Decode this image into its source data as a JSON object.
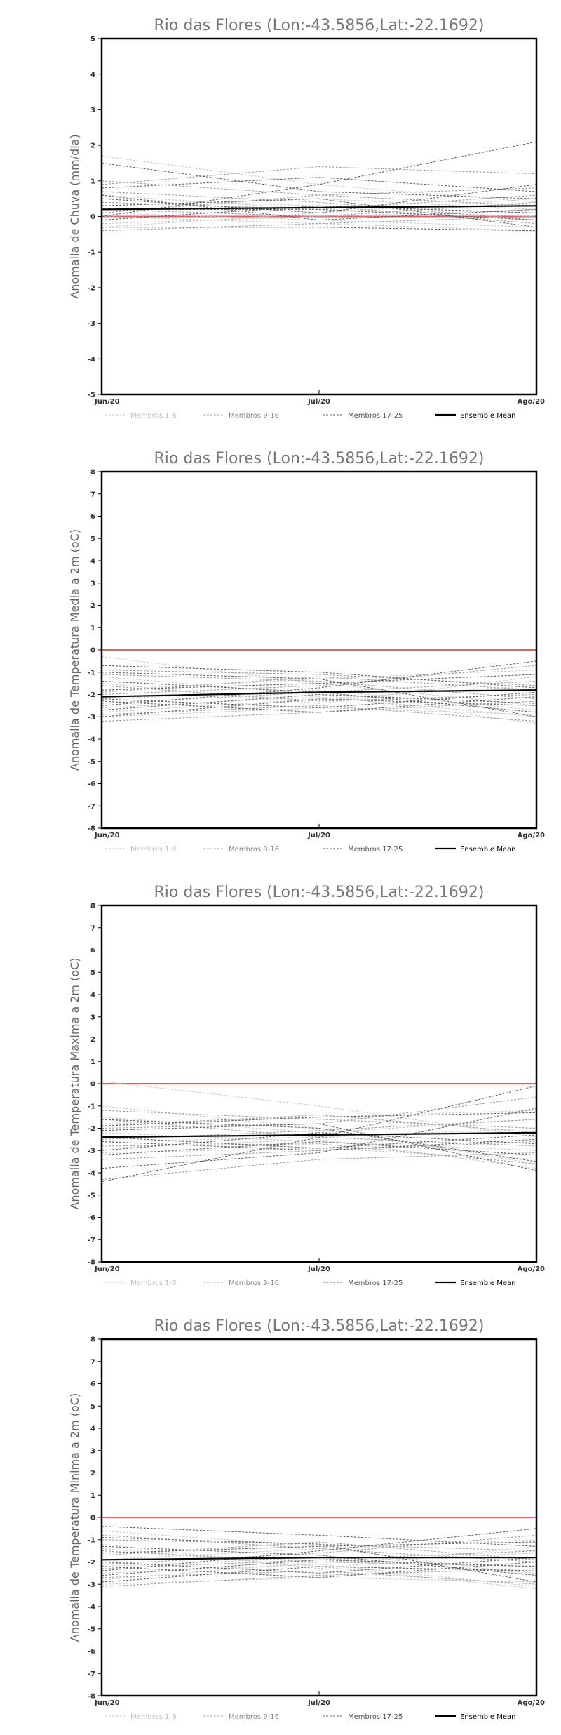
{
  "chart_data": [
    {
      "type": "line",
      "title": "Rio das Flores (Lon:-43.5856,Lat:-22.1692)",
      "ylabel": "Anomalia de Chuva (mm/dia)",
      "categories": [
        "Jun/20",
        "Jul/20",
        "Ago/20"
      ],
      "ylim": [
        -5,
        5
      ],
      "yticks": [
        -5,
        -4,
        -3,
        -2,
        -1,
        0,
        1,
        2,
        3,
        4,
        5
      ],
      "zero_line_color": "#e06060",
      "legend": {
        "placement": "bottom",
        "entries": [
          {
            "label": "Membros 1-8",
            "color": "#c8c8c8"
          },
          {
            "label": "Membros 9-16",
            "color": "#a0a0a0"
          },
          {
            "label": "Membros 17-25",
            "color": "#606060"
          },
          {
            "label": "Ensemble Mean",
            "color": "#000000"
          }
        ]
      },
      "ensemble_mean": [
        0.2,
        0.25,
        0.3
      ],
      "series": [
        {
          "group": 1,
          "values": [
            1.7,
            0.9,
            0.4
          ]
        },
        {
          "group": 1,
          "values": [
            0.5,
            0.3,
            0.1
          ]
        },
        {
          "group": 1,
          "values": [
            0.1,
            -0.1,
            -0.3
          ]
        },
        {
          "group": 1,
          "values": [
            -0.2,
            0.0,
            0.2
          ]
        },
        {
          "group": 1,
          "values": [
            0.3,
            0.5,
            0.2
          ]
        },
        {
          "group": 1,
          "values": [
            0.0,
            -0.2,
            -0.4
          ]
        },
        {
          "group": 1,
          "values": [
            -0.3,
            0.1,
            0.5
          ]
        },
        {
          "group": 1,
          "values": [
            0.6,
            0.2,
            0.0
          ]
        },
        {
          "group": 2,
          "values": [
            0.9,
            1.4,
            1.2
          ]
        },
        {
          "group": 2,
          "values": [
            1.0,
            0.6,
            0.8
          ]
        },
        {
          "group": 2,
          "values": [
            0.4,
            0.2,
            0.6
          ]
        },
        {
          "group": 2,
          "values": [
            -0.1,
            0.3,
            -0.2
          ]
        },
        {
          "group": 2,
          "values": [
            0.2,
            0.0,
            0.4
          ]
        },
        {
          "group": 2,
          "values": [
            -0.4,
            -0.2,
            0.0
          ]
        },
        {
          "group": 2,
          "values": [
            0.7,
            0.4,
            -0.1
          ]
        },
        {
          "group": 2,
          "values": [
            0.1,
            0.6,
            0.3
          ]
        },
        {
          "group": 3,
          "values": [
            0.0,
            0.9,
            2.1
          ]
        },
        {
          "group": 3,
          "values": [
            1.5,
            0.7,
            0.5
          ]
        },
        {
          "group": 3,
          "values": [
            0.8,
            1.1,
            0.7
          ]
        },
        {
          "group": 3,
          "values": [
            -0.3,
            -0.3,
            -0.4
          ]
        },
        {
          "group": 3,
          "values": [
            0.5,
            0.1,
            0.9
          ]
        },
        {
          "group": 3,
          "values": [
            0.2,
            0.2,
            -0.1
          ]
        },
        {
          "group": 3,
          "values": [
            -0.1,
            0.3,
            0.1
          ]
        },
        {
          "group": 3,
          "values": [
            0.6,
            -0.1,
            0.2
          ]
        },
        {
          "group": 3,
          "values": [
            0.3,
            0.5,
            -0.3
          ]
        }
      ]
    },
    {
      "type": "line",
      "title": "Rio das Flores (Lon:-43.5856,Lat:-22.1692)",
      "ylabel": "Anomalia de Temperatura Media a 2m (oC)",
      "categories": [
        "Jun/20",
        "Jul/20",
        "Ago/20"
      ],
      "ylim": [
        -8,
        8
      ],
      "yticks": [
        -8,
        -7,
        -6,
        -5,
        -4,
        -3,
        -2,
        -1,
        0,
        1,
        2,
        3,
        4,
        5,
        6,
        7,
        8
      ],
      "zero_line_color": "#e06060",
      "legend": {
        "placement": "bottom",
        "entries": [
          {
            "label": "Membros 1-8",
            "color": "#c8c8c8"
          },
          {
            "label": "Membros 9-16",
            "color": "#a0a0a0"
          },
          {
            "label": "Membros 17-25",
            "color": "#606060"
          },
          {
            "label": "Ensemble Mean",
            "color": "#000000"
          }
        ]
      },
      "ensemble_mean": [
        -2.1,
        -1.9,
        -1.8
      ],
      "series": [
        {
          "group": 1,
          "values": [
            -0.3,
            -1.5,
            -2.5
          ]
        },
        {
          "group": 1,
          "values": [
            -1.2,
            -2.0,
            -3.3
          ]
        },
        {
          "group": 1,
          "values": [
            -2.8,
            -2.2,
            -1.6
          ]
        },
        {
          "group": 1,
          "values": [
            -1.8,
            -1.3,
            -0.9
          ]
        },
        {
          "group": 1,
          "values": [
            -3.0,
            -2.6,
            -2.9
          ]
        },
        {
          "group": 1,
          "values": [
            -2.2,
            -1.8,
            -2.7
          ]
        },
        {
          "group": 1,
          "values": [
            -1.5,
            -2.4,
            -1.2
          ]
        },
        {
          "group": 1,
          "values": [
            -2.6,
            -2.1,
            -3.0
          ]
        },
        {
          "group": 2,
          "values": [
            -0.9,
            -1.1,
            -1.6
          ]
        },
        {
          "group": 2,
          "values": [
            -2.0,
            -1.6,
            -0.7
          ]
        },
        {
          "group": 2,
          "values": [
            -3.2,
            -2.8,
            -2.3
          ]
        },
        {
          "group": 2,
          "values": [
            -1.6,
            -2.3,
            -2.0
          ]
        },
        {
          "group": 2,
          "values": [
            -2.4,
            -1.9,
            -1.4
          ]
        },
        {
          "group": 2,
          "values": [
            -1.1,
            -1.4,
            -2.2
          ]
        },
        {
          "group": 2,
          "values": [
            -2.9,
            -2.5,
            -3.2
          ]
        },
        {
          "group": 2,
          "values": [
            -1.9,
            -1.2,
            -1.8
          ]
        },
        {
          "group": 3,
          "values": [
            -0.7,
            -1.0,
            -1.7
          ]
        },
        {
          "group": 3,
          "values": [
            -2.5,
            -1.7,
            -0.5
          ]
        },
        {
          "group": 3,
          "values": [
            -3.0,
            -2.2,
            -2.5
          ]
        },
        {
          "group": 3,
          "values": [
            -1.4,
            -1.9,
            -2.8
          ]
        },
        {
          "group": 3,
          "values": [
            -2.2,
            -2.6,
            -1.9
          ]
        },
        {
          "group": 3,
          "values": [
            -1.8,
            -1.5,
            -1.1
          ]
        },
        {
          "group": 3,
          "values": [
            -2.7,
            -2.0,
            -2.4
          ]
        },
        {
          "group": 3,
          "values": [
            -1.0,
            -1.3,
            -3.0
          ]
        },
        {
          "group": 3,
          "values": [
            -2.3,
            -2.8,
            -2.1
          ]
        }
      ]
    },
    {
      "type": "line",
      "title": "Rio das Flores (Lon:-43.5856,Lat:-22.1692)",
      "ylabel": "Anomalia de Temperatura Maxima a 2m (oC)",
      "categories": [
        "Jun/20",
        "Jul/20",
        "Ago/20"
      ],
      "ylim": [
        -8,
        8
      ],
      "yticks": [
        -8,
        -7,
        -6,
        -5,
        -4,
        -3,
        -2,
        -1,
        0,
        1,
        2,
        3,
        4,
        5,
        6,
        7,
        8
      ],
      "zero_line_color": "#e06060",
      "legend": {
        "placement": "bottom",
        "entries": [
          {
            "label": "Membros 1-8",
            "color": "#c8c8c8"
          },
          {
            "label": "Membros 9-16",
            "color": "#a0a0a0"
          },
          {
            "label": "Membros 17-25",
            "color": "#606060"
          },
          {
            "label": "Ensemble Mean",
            "color": "#000000"
          }
        ]
      },
      "ensemble_mean": [
        -2.4,
        -2.3,
        -2.2
      ],
      "series": [
        {
          "group": 1,
          "values": [
            0.1,
            -1.0,
            -2.4
          ]
        },
        {
          "group": 1,
          "values": [
            -1.0,
            -2.0,
            -3.6
          ]
        },
        {
          "group": 1,
          "values": [
            -2.6,
            -2.4,
            -2.0
          ]
        },
        {
          "group": 1,
          "values": [
            -1.8,
            -1.5,
            -1.2
          ]
        },
        {
          "group": 1,
          "values": [
            -3.1,
            -2.9,
            -3.4
          ]
        },
        {
          "group": 1,
          "values": [
            -2.2,
            -2.6,
            -3.0
          ]
        },
        {
          "group": 1,
          "values": [
            -1.5,
            -2.2,
            -1.6
          ]
        },
        {
          "group": 1,
          "values": [
            -2.9,
            -2.5,
            -3.8
          ]
        },
        {
          "group": 2,
          "values": [
            -1.2,
            -1.6,
            -2.0
          ]
        },
        {
          "group": 2,
          "values": [
            -2.0,
            -1.8,
            -0.6
          ]
        },
        {
          "group": 2,
          "values": [
            -3.4,
            -3.0,
            -2.6
          ]
        },
        {
          "group": 2,
          "values": [
            -1.6,
            -2.4,
            -2.8
          ]
        },
        {
          "group": 2,
          "values": [
            -2.5,
            -2.1,
            -1.6
          ]
        },
        {
          "group": 2,
          "values": [
            -4.3,
            -3.4,
            -3.1
          ]
        },
        {
          "group": 2,
          "values": [
            -2.8,
            -2.7,
            -3.6
          ]
        },
        {
          "group": 2,
          "values": [
            -1.9,
            -1.4,
            -2.2
          ]
        },
        {
          "group": 3,
          "values": [
            -4.4,
            -2.4,
            -0.1
          ]
        },
        {
          "group": 3,
          "values": [
            -3.8,
            -3.1,
            -1.1
          ]
        },
        {
          "group": 3,
          "values": [
            -3.2,
            -2.6,
            -3.2
          ]
        },
        {
          "group": 3,
          "values": [
            -1.6,
            -2.0,
            -3.5
          ]
        },
        {
          "group": 3,
          "values": [
            -2.4,
            -2.9,
            -2.3
          ]
        },
        {
          "group": 3,
          "values": [
            -1.9,
            -1.5,
            -1.3
          ]
        },
        {
          "group": 3,
          "values": [
            -3.0,
            -2.2,
            -2.7
          ]
        },
        {
          "group": 3,
          "values": [
            -2.1,
            -1.8,
            -3.9
          ]
        },
        {
          "group": 3,
          "values": [
            -2.6,
            -3.0,
            -2.5
          ]
        }
      ]
    },
    {
      "type": "line",
      "title": "Rio das Flores (Lon:-43.5856,Lat:-22.1692)",
      "ylabel": "Anomalia de Temperatura Minima a 2m (oC)",
      "categories": [
        "Jun/20",
        "Jul/20",
        "Ago/20"
      ],
      "ylim": [
        -8,
        8
      ],
      "yticks": [
        -8,
        -7,
        -6,
        -5,
        -4,
        -3,
        -2,
        -1,
        0,
        1,
        2,
        3,
        4,
        5,
        6,
        7,
        8
      ],
      "zero_line_color": "#e06060",
      "legend": {
        "placement": "bottom",
        "entries": [
          {
            "label": "Membros 1-8",
            "color": "#c8c8c8"
          },
          {
            "label": "Membros 9-16",
            "color": "#a0a0a0"
          },
          {
            "label": "Membros 17-25",
            "color": "#606060"
          },
          {
            "label": "Ensemble Mean",
            "color": "#000000"
          }
        ]
      },
      "ensemble_mean": [
        -1.9,
        -1.8,
        -1.8
      ],
      "series": [
        {
          "group": 1,
          "values": [
            -0.6,
            -1.3,
            -2.6
          ]
        },
        {
          "group": 1,
          "values": [
            -1.4,
            -2.2,
            -3.2
          ]
        },
        {
          "group": 1,
          "values": [
            -2.8,
            -2.0,
            -1.6
          ]
        },
        {
          "group": 1,
          "values": [
            -1.9,
            -1.4,
            -1.0
          ]
        },
        {
          "group": 1,
          "values": [
            -3.0,
            -2.7,
            -2.9
          ]
        },
        {
          "group": 1,
          "values": [
            -2.2,
            -1.8,
            -2.5
          ]
        },
        {
          "group": 1,
          "values": [
            -1.2,
            -2.3,
            -1.3
          ]
        },
        {
          "group": 1,
          "values": [
            -2.5,
            -2.1,
            -3.1
          ]
        },
        {
          "group": 2,
          "values": [
            -1.0,
            -1.2,
            -1.5
          ]
        },
        {
          "group": 2,
          "values": [
            -2.1,
            -1.6,
            -0.8
          ]
        },
        {
          "group": 2,
          "values": [
            -3.1,
            -2.6,
            -2.3
          ]
        },
        {
          "group": 2,
          "values": [
            -1.5,
            -2.0,
            -2.2
          ]
        },
        {
          "group": 2,
          "values": [
            -2.3,
            -1.9,
            -1.5
          ]
        },
        {
          "group": 2,
          "values": [
            -0.8,
            -1.4,
            -2.0
          ]
        },
        {
          "group": 2,
          "values": [
            -2.7,
            -2.4,
            -3.0
          ]
        },
        {
          "group": 2,
          "values": [
            -1.7,
            -1.1,
            -1.9
          ]
        },
        {
          "group": 3,
          "values": [
            -0.4,
            -0.8,
            -1.3
          ]
        },
        {
          "group": 3,
          "values": [
            -2.4,
            -1.5,
            -0.5
          ]
        },
        {
          "group": 3,
          "values": [
            -2.9,
            -2.2,
            -2.4
          ]
        },
        {
          "group": 3,
          "values": [
            -1.3,
            -1.7,
            -2.6
          ]
        },
        {
          "group": 3,
          "values": [
            -2.0,
            -2.5,
            -1.8
          ]
        },
        {
          "group": 3,
          "values": [
            -1.6,
            -1.3,
            -1.1
          ]
        },
        {
          "group": 3,
          "values": [
            -2.6,
            -1.9,
            -2.2
          ]
        },
        {
          "group": 3,
          "values": [
            -0.9,
            -1.2,
            -2.9
          ]
        },
        {
          "group": 3,
          "values": [
            -2.2,
            -2.7,
            -2.0
          ]
        }
      ]
    }
  ]
}
